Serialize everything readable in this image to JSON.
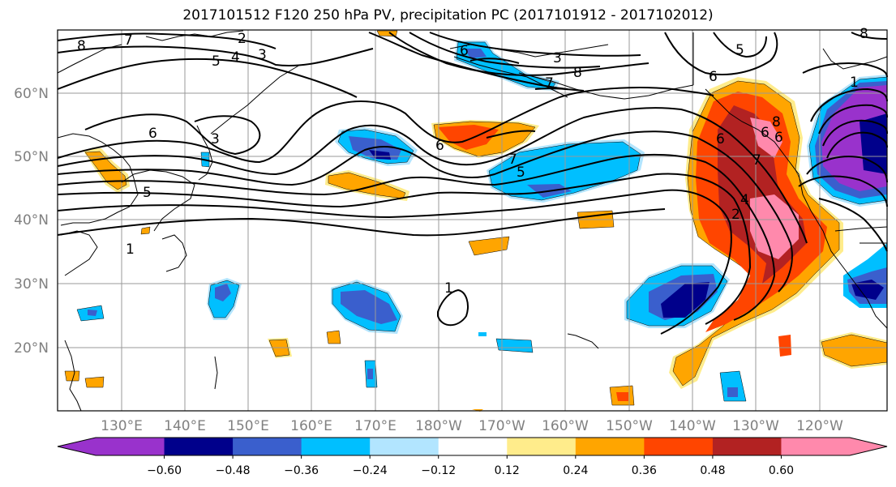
{
  "title": "2017101512 F120 250 hPa PV, precipitation PC (2017101912 - 2017102012)",
  "lat_labels": [
    "60°N",
    "50°N",
    "40°N",
    "30°N",
    "20°N"
  ],
  "lon_labels": [
    "130°E",
    "140°E",
    "150°E",
    "160°E",
    "170°E",
    "180°W",
    "170°W",
    "160°W",
    "150°W",
    "140°W",
    "130°W",
    "120°W"
  ],
  "contour_labels": [
    "8",
    "7",
    "2",
    "3",
    "4",
    "5",
    "6",
    "3",
    "8",
    "6",
    "5",
    "6",
    "3",
    "6",
    "5",
    "7",
    "5",
    "1",
    "1",
    "6",
    "8",
    "7",
    "6",
    "4",
    "2",
    "7",
    "8",
    "6",
    "1"
  ],
  "colorbar": {
    "colors": [
      "#9932CC",
      "#00008B",
      "#3A5FCD",
      "#00BFFF",
      "#B2E5FF",
      "#FFFFFF",
      "#FFEC8B",
      "#FFA500",
      "#FF4500",
      "#B22222",
      "#FF89AC"
    ],
    "tick_labels": [
      "−0.60",
      "−0.48",
      "−0.36",
      "−0.24",
      "−0.12",
      "0.12",
      "0.24",
      "0.36",
      "0.48",
      "0.60"
    ]
  },
  "map": {
    "lat_range": [
      10,
      70
    ],
    "lon_range": [
      120,
      251
    ],
    "gridline_color": "#999999"
  }
}
